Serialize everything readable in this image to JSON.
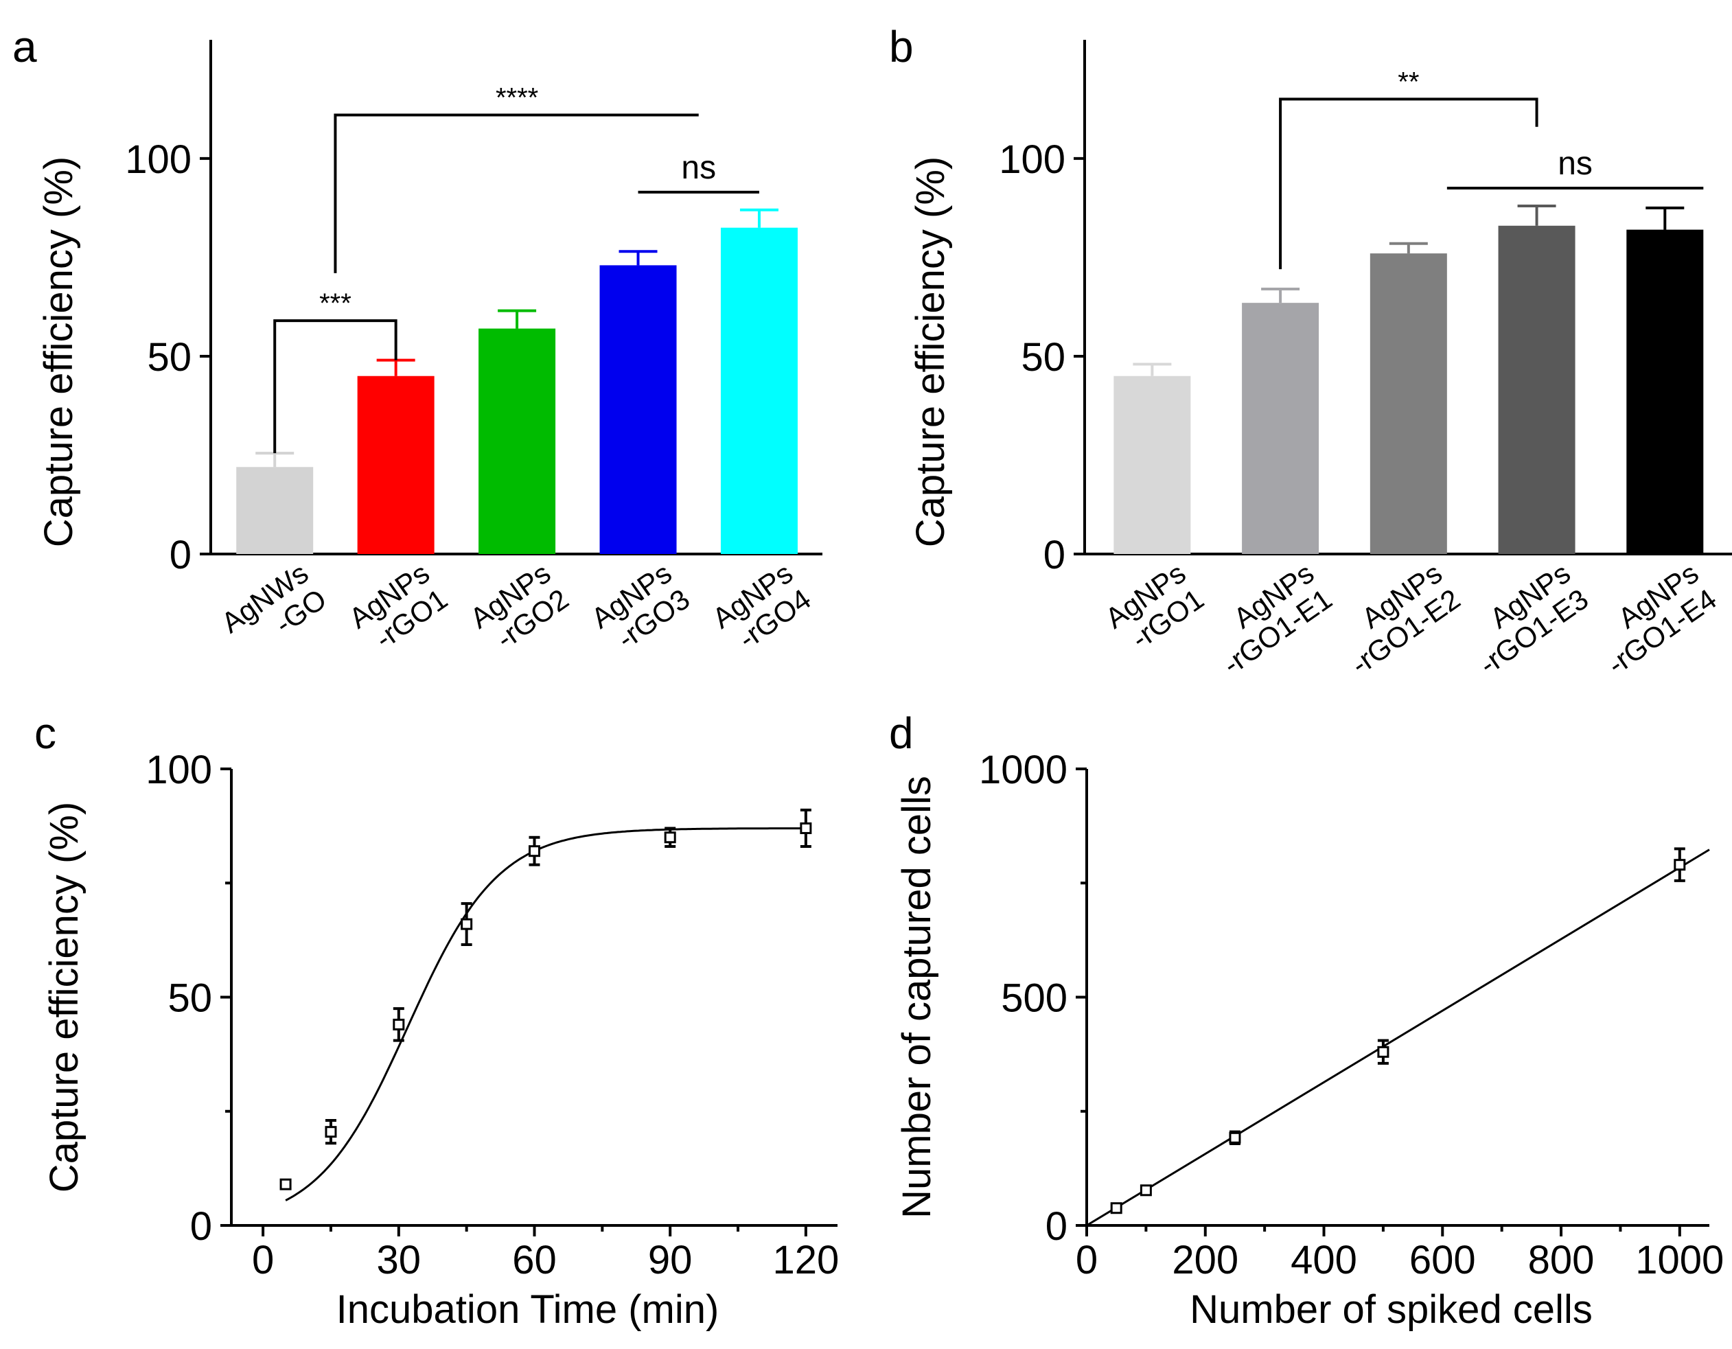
{
  "chart_data": [
    {
      "panel": "a",
      "type": "bar",
      "ylabel": "Capture efficiency (%)",
      "ylim": [
        0,
        130
      ],
      "yticks": [
        0,
        50,
        100
      ],
      "categories": [
        [
          "AgNWs",
          "-GO"
        ],
        [
          "AgNPs",
          "-rGO1"
        ],
        [
          "AgNPs",
          "-rGO2"
        ],
        [
          "AgNPs",
          "-rGO3"
        ],
        [
          "AgNPs",
          "-rGO4"
        ]
      ],
      "values": [
        22,
        45,
        57,
        73,
        82.5
      ],
      "errors": [
        3.5,
        4,
        4.5,
        3.5,
        4.5
      ],
      "colors": [
        "#d3d3d3",
        "#ff0000",
        "#00bb00",
        "#0000ee",
        "#00ffff"
      ],
      "annotations": [
        {
          "label": "***",
          "from": 0,
          "to": 1,
          "type": "bracket",
          "level": 59,
          "y_from": 25.5,
          "y_to": 49
        },
        {
          "label": "****",
          "from": 0.5,
          "to": 3.5,
          "type": "bracket",
          "level": 111,
          "y_from": 71,
          "y_to": 111
        },
        {
          "label": "ns",
          "from": 3,
          "to": 4,
          "type": "line",
          "level": 91.5
        }
      ]
    },
    {
      "panel": "b",
      "type": "bar",
      "ylabel": "Capture efficiency (%)",
      "ylim": [
        0,
        130
      ],
      "yticks": [
        0,
        50,
        100
      ],
      "categories": [
        [
          "AgNPs",
          "-rGO1"
        ],
        [
          "AgNPs",
          "-rGO1-E1"
        ],
        [
          "AgNPs",
          "-rGO1-E2"
        ],
        [
          "AgNPs",
          "-rGO1-E3"
        ],
        [
          "AgNPs",
          "-rGO1-E4"
        ]
      ],
      "values": [
        45,
        63.5,
        76,
        83,
        82
      ],
      "errors": [
        3,
        3.5,
        2.5,
        5,
        5.5
      ],
      "colors": [
        "#d8d8d8",
        "#a5a5a9",
        "#7f7f7f",
        "#595959",
        "#000000"
      ],
      "annotations": [
        {
          "label": "**",
          "from": 1,
          "to": 3,
          "type": "bracket",
          "level": 115,
          "y_from": 72,
          "y_to": 108
        },
        {
          "label": "ns",
          "from": 2.3,
          "to": 4.3,
          "type": "line",
          "level": 92.5
        }
      ]
    },
    {
      "panel": "c",
      "type": "scatter",
      "xlabel": "Incubation Time (min)",
      "ylabel": "Capture efficiency (%)",
      "xlim": [
        -7,
        127
      ],
      "ylim": [
        0,
        100
      ],
      "xticks": [
        0,
        30,
        60,
        90,
        120
      ],
      "yticks": [
        0,
        50,
        100
      ],
      "x": [
        5,
        15,
        30,
        45,
        60,
        90,
        120
      ],
      "y": [
        9,
        20.5,
        44,
        66,
        82,
        85,
        87
      ],
      "errors": [
        0.8,
        2.5,
        3.5,
        4.5,
        3,
        2,
        4
      ],
      "fit": "sigmoid",
      "fit_params": {
        "top": 87,
        "x0": 32,
        "k": 0.1
      }
    },
    {
      "panel": "d",
      "type": "scatter",
      "xlabel": "Number of spiked cells",
      "ylabel": "Number of captured cells",
      "xlim": [
        0,
        1050
      ],
      "ylim": [
        0,
        1000
      ],
      "xticks": [
        0,
        200,
        400,
        600,
        800,
        1000
      ],
      "yticks": [
        0,
        500,
        1000
      ],
      "x": [
        50,
        100,
        250,
        500,
        1000
      ],
      "y": [
        38,
        77,
        192,
        380,
        790
      ],
      "errors": [
        8,
        7,
        13,
        25,
        35
      ],
      "fit": "linear",
      "fit_params": {
        "slope": 0.784,
        "intercept": 0
      }
    }
  ]
}
